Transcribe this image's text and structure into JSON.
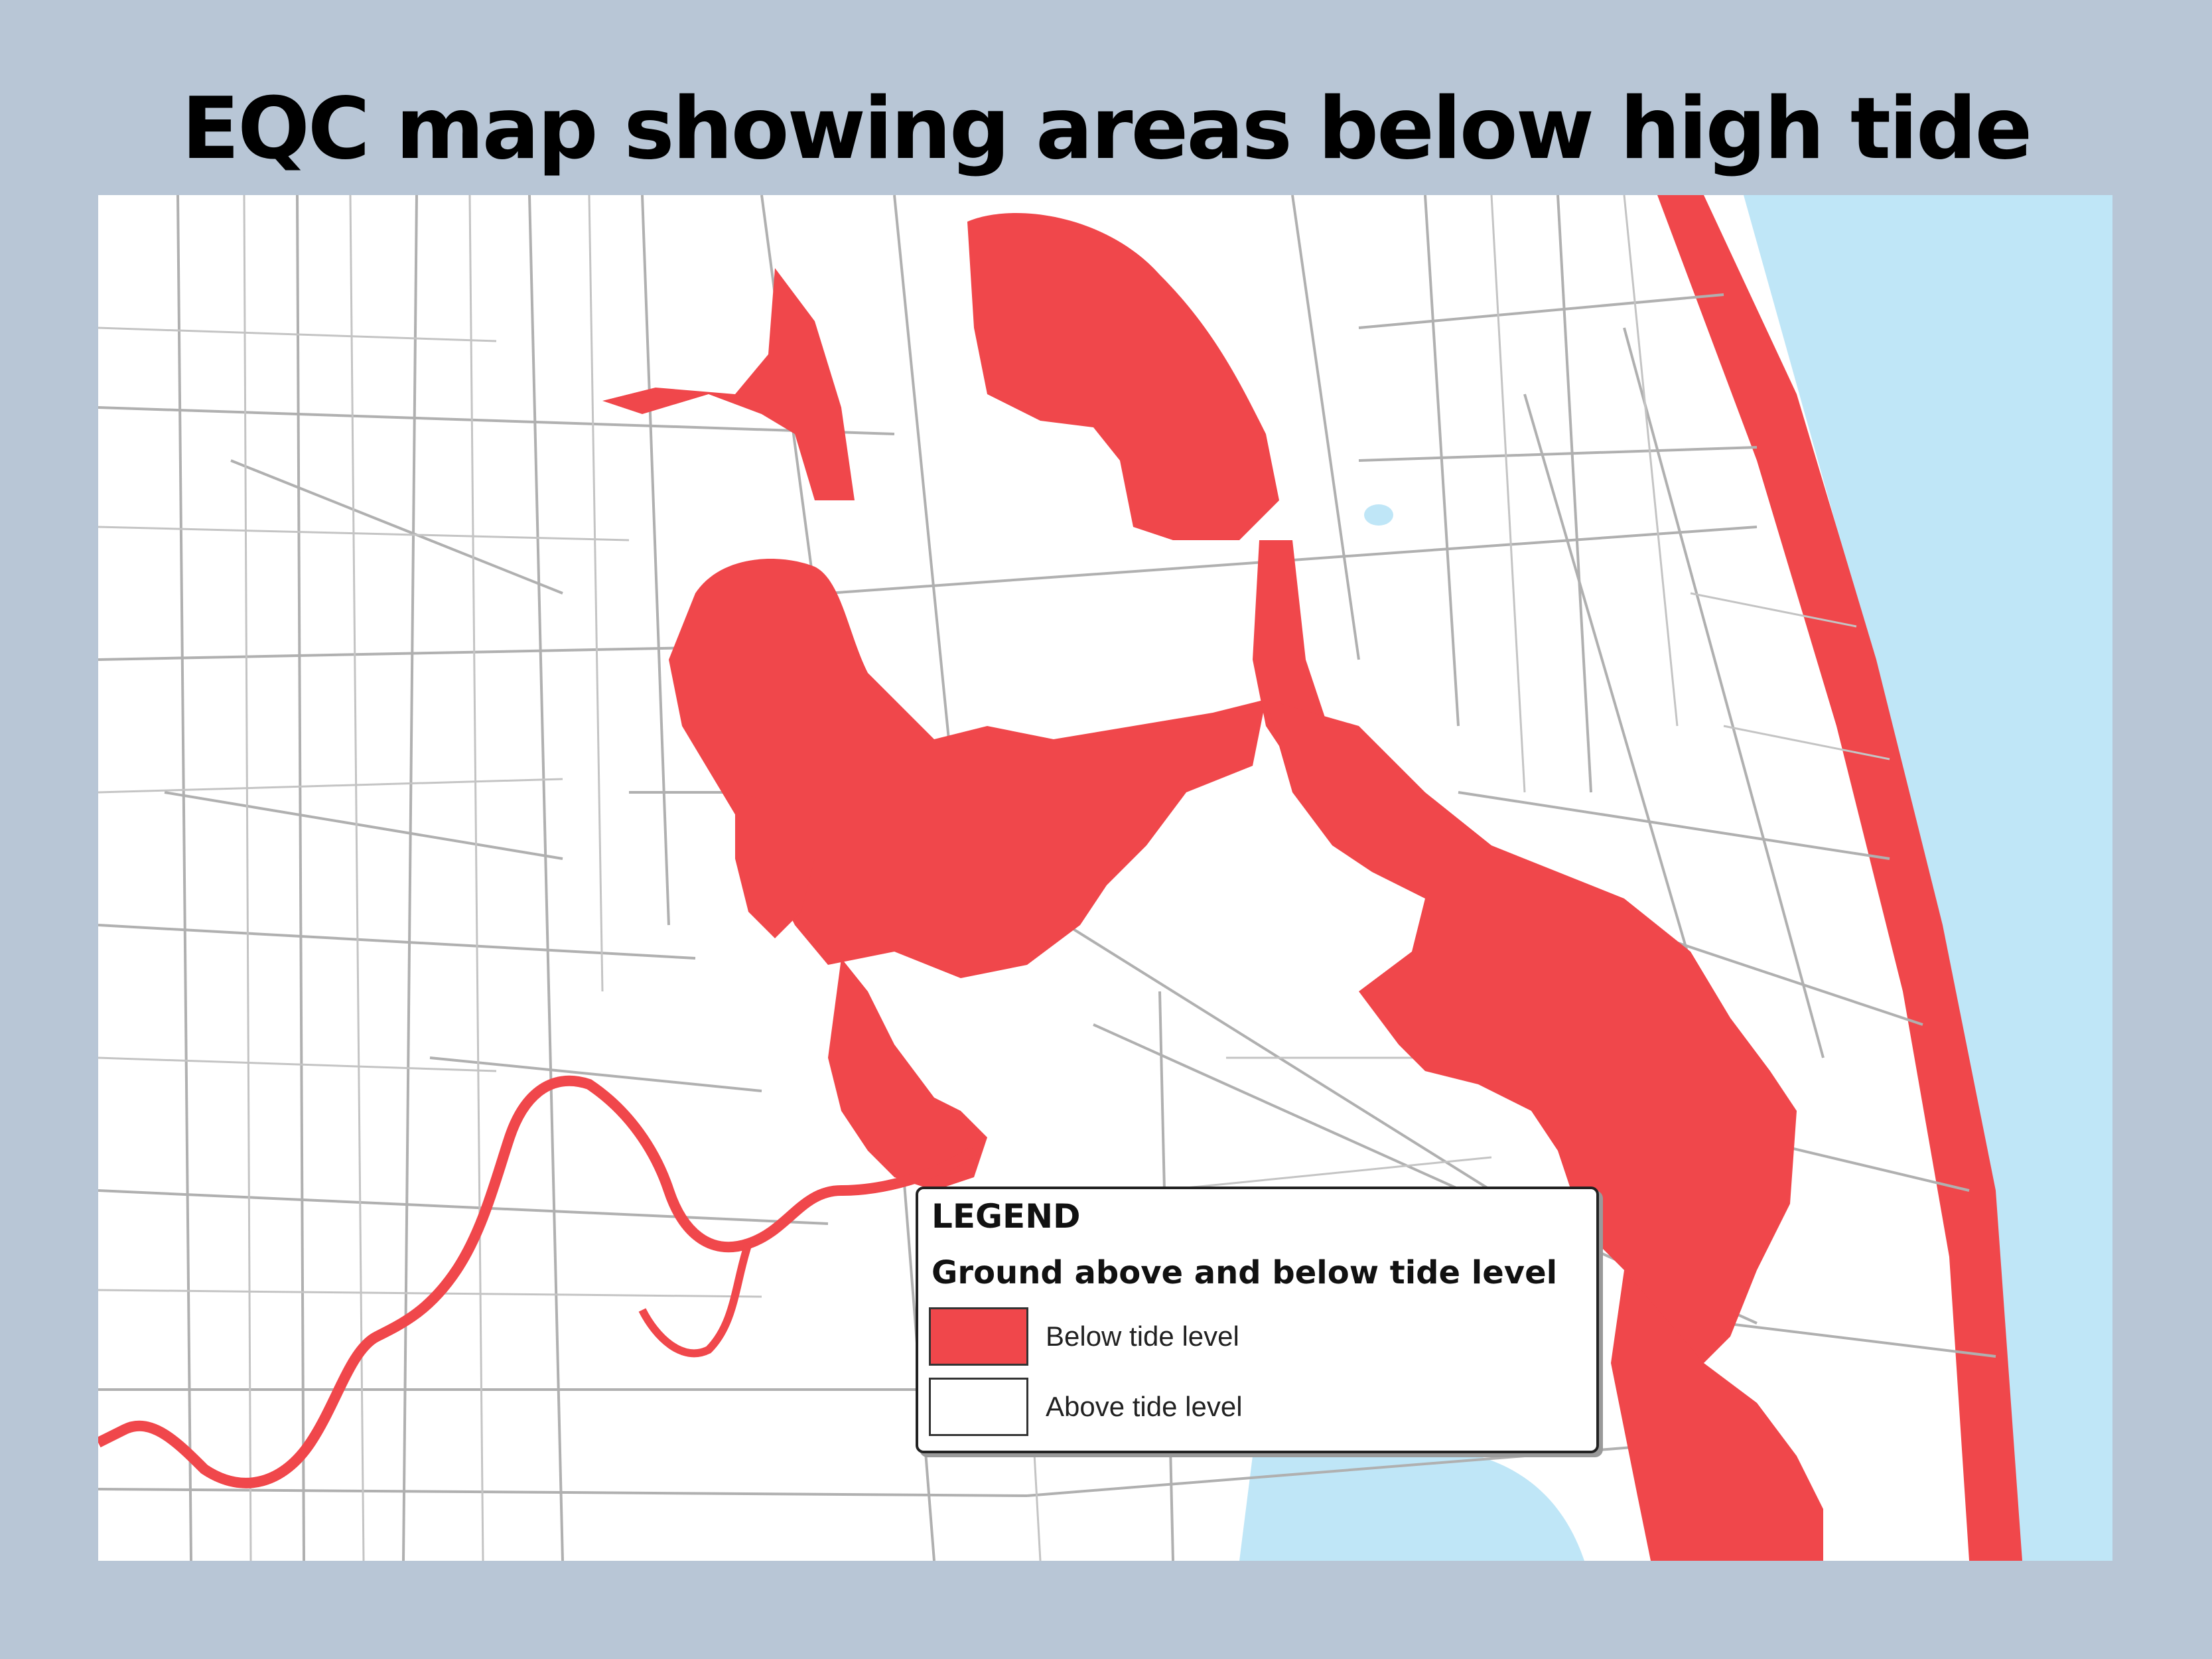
{
  "title": "EQC map showing areas below high tide",
  "colors": {
    "slide_background": "#b8c6d6",
    "below_tide": "#f0474b",
    "below_tide_deep": "#e63e44",
    "above_tide": "#ffffff",
    "water": "#bfe6f7",
    "roads": "#b0b0b0"
  },
  "legend": {
    "heading": "LEGEND",
    "subheading": "Ground above and below tide level",
    "items": [
      {
        "label": "Below tide level",
        "color": "#f0474b"
      },
      {
        "label": "Above tide level",
        "color": "#ffffff"
      }
    ]
  }
}
